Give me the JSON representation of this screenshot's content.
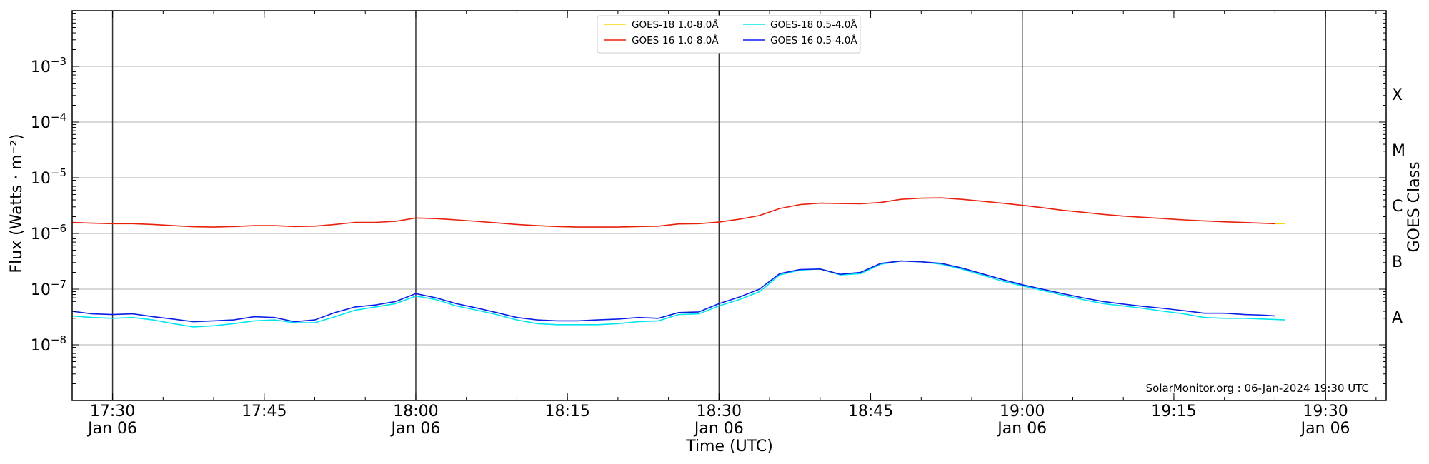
{
  "chart_data": {
    "type": "line",
    "xlabel": "Time (UTC)",
    "ylabel": "Flux (Watts · m⁻²)",
    "y2label": "GOES Class",
    "yscale": "log",
    "ylim": [
      1e-09,
      0.01
    ],
    "xlim": [
      "17:26:00",
      "19:36:00"
    ],
    "y_ticks": [
      {
        "value": 1e-08,
        "base": "10",
        "exp": "−8"
      },
      {
        "value": 1e-07,
        "base": "10",
        "exp": "−7"
      },
      {
        "value": 1e-06,
        "base": "10",
        "exp": "−6"
      },
      {
        "value": 1e-05,
        "base": "10",
        "exp": "−5"
      },
      {
        "value": 0.0001,
        "base": "10",
        "exp": "−4"
      },
      {
        "value": 0.001,
        "base": "10",
        "exp": "−3"
      }
    ],
    "x_ticks": [
      {
        "time": "17:30",
        "label": "17:30",
        "date": "Jan 06"
      },
      {
        "time": "17:45",
        "label": "17:45",
        "date": ""
      },
      {
        "time": "18:00",
        "label": "18:00",
        "date": "Jan 06"
      },
      {
        "time": "18:15",
        "label": "18:15",
        "date": ""
      },
      {
        "time": "18:30",
        "label": "18:30",
        "date": "Jan 06"
      },
      {
        "time": "18:45",
        "label": "18:45",
        "date": ""
      },
      {
        "time": "19:00",
        "label": "19:00",
        "date": "Jan 06"
      },
      {
        "time": "19:15",
        "label": "19:15",
        "date": ""
      },
      {
        "time": "19:30",
        "label": "19:30",
        "date": "Jan 06"
      }
    ],
    "vertical_lines": [
      "17:30",
      "18:00",
      "18:30",
      "19:00",
      "19:30"
    ],
    "goes_classes": [
      {
        "label": "A",
        "value": 3.16e-08
      },
      {
        "label": "B",
        "value": 3.16e-07
      },
      {
        "label": "C",
        "value": 3.16e-06
      },
      {
        "label": "M",
        "value": 3.16e-05
      },
      {
        "label": "X",
        "value": 0.000316
      }
    ],
    "grid": true,
    "legend_position": "top-center",
    "credit": "SolarMonitor.org : 06-Jan-2024 19:30 UTC",
    "series": [
      {
        "name": "GOES-18 1.0-8.0Å",
        "color": "#ffd700",
        "points": [
          [
            "19:25",
            1.5e-06
          ],
          [
            "19:26",
            1.5e-06
          ]
        ]
      },
      {
        "name": "GOES-16 1.0-8.0Å",
        "color": "#e8200c",
        "points": [
          [
            "17:26",
            1.58e-06
          ],
          [
            "17:28",
            1.53e-06
          ],
          [
            "17:30",
            1.5e-06
          ],
          [
            "17:32",
            1.5e-06
          ],
          [
            "17:34",
            1.45e-06
          ],
          [
            "17:36",
            1.38e-06
          ],
          [
            "17:38",
            1.32e-06
          ],
          [
            "17:40",
            1.3e-06
          ],
          [
            "17:42",
            1.33e-06
          ],
          [
            "17:44",
            1.38e-06
          ],
          [
            "17:46",
            1.38e-06
          ],
          [
            "17:48",
            1.33e-06
          ],
          [
            "17:50",
            1.35e-06
          ],
          [
            "17:52",
            1.45e-06
          ],
          [
            "17:54",
            1.58e-06
          ],
          [
            "17:56",
            1.58e-06
          ],
          [
            "17:58",
            1.65e-06
          ],
          [
            "18:00",
            1.9e-06
          ],
          [
            "18:02",
            1.85e-06
          ],
          [
            "18:04",
            1.75e-06
          ],
          [
            "18:06",
            1.65e-06
          ],
          [
            "18:08",
            1.55e-06
          ],
          [
            "18:10",
            1.45e-06
          ],
          [
            "18:12",
            1.38e-06
          ],
          [
            "18:14",
            1.33e-06
          ],
          [
            "18:16",
            1.3e-06
          ],
          [
            "18:18",
            1.3e-06
          ],
          [
            "18:20",
            1.3e-06
          ],
          [
            "18:22",
            1.33e-06
          ],
          [
            "18:24",
            1.35e-06
          ],
          [
            "18:26",
            1.48e-06
          ],
          [
            "18:28",
            1.5e-06
          ],
          [
            "18:30",
            1.6e-06
          ],
          [
            "18:32",
            1.8e-06
          ],
          [
            "18:34",
            2.1e-06
          ],
          [
            "18:36",
            2.8e-06
          ],
          [
            "18:38",
            3.3e-06
          ],
          [
            "18:40",
            3.5e-06
          ],
          [
            "18:42",
            3.45e-06
          ],
          [
            "18:44",
            3.4e-06
          ],
          [
            "18:46",
            3.6e-06
          ],
          [
            "18:48",
            4.1e-06
          ],
          [
            "18:50",
            4.3e-06
          ],
          [
            "18:52",
            4.35e-06
          ],
          [
            "18:54",
            4.1e-06
          ],
          [
            "18:56",
            3.8e-06
          ],
          [
            "18:58",
            3.5e-06
          ],
          [
            "19:00",
            3.2e-06
          ],
          [
            "19:02",
            2.9e-06
          ],
          [
            "19:04",
            2.6e-06
          ],
          [
            "19:06",
            2.4e-06
          ],
          [
            "19:08",
            2.2e-06
          ],
          [
            "19:10",
            2.05e-06
          ],
          [
            "19:12",
            1.95e-06
          ],
          [
            "19:14",
            1.85e-06
          ],
          [
            "19:16",
            1.75e-06
          ],
          [
            "19:18",
            1.68e-06
          ],
          [
            "19:20",
            1.62e-06
          ],
          [
            "19:22",
            1.57e-06
          ],
          [
            "19:24",
            1.52e-06
          ],
          [
            "19:25",
            1.5e-06
          ]
        ]
      },
      {
        "name": "GOES-18 0.5-4.0Å",
        "color": "#00e5ee",
        "points": [
          [
            "17:26",
            3.3e-08
          ],
          [
            "17:28",
            3.1e-08
          ],
          [
            "17:30",
            3e-08
          ],
          [
            "17:32",
            3.1e-08
          ],
          [
            "17:34",
            2.8e-08
          ],
          [
            "17:36",
            2.4e-08
          ],
          [
            "17:38",
            2.1e-08
          ],
          [
            "17:40",
            2.2e-08
          ],
          [
            "17:42",
            2.4e-08
          ],
          [
            "17:44",
            2.7e-08
          ],
          [
            "17:46",
            2.8e-08
          ],
          [
            "17:48",
            2.5e-08
          ],
          [
            "17:50",
            2.5e-08
          ],
          [
            "17:52",
            3.2e-08
          ],
          [
            "17:54",
            4.2e-08
          ],
          [
            "17:56",
            4.8e-08
          ],
          [
            "17:58",
            5.5e-08
          ],
          [
            "18:00",
            7.5e-08
          ],
          [
            "18:02",
            6.5e-08
          ],
          [
            "18:04",
            5e-08
          ],
          [
            "18:06",
            4.2e-08
          ],
          [
            "18:08",
            3.5e-08
          ],
          [
            "18:10",
            2.8e-08
          ],
          [
            "18:12",
            2.4e-08
          ],
          [
            "18:14",
            2.3e-08
          ],
          [
            "18:16",
            2.3e-08
          ],
          [
            "18:18",
            2.3e-08
          ],
          [
            "18:20",
            2.4e-08
          ],
          [
            "18:22",
            2.6e-08
          ],
          [
            "18:24",
            2.7e-08
          ],
          [
            "18:26",
            3.5e-08
          ],
          [
            "18:28",
            3.6e-08
          ],
          [
            "18:30",
            5e-08
          ],
          [
            "18:32",
            6.5e-08
          ],
          [
            "18:34",
            9e-08
          ],
          [
            "18:36",
            1.8e-07
          ],
          [
            "18:38",
            2.2e-07
          ],
          [
            "18:40",
            2.3e-07
          ],
          [
            "18:42",
            1.8e-07
          ],
          [
            "18:44",
            1.9e-07
          ],
          [
            "18:46",
            2.8e-07
          ],
          [
            "18:48",
            3.2e-07
          ],
          [
            "18:50",
            3.1e-07
          ],
          [
            "18:52",
            2.8e-07
          ],
          [
            "18:54",
            2.3e-07
          ],
          [
            "18:56",
            1.8e-07
          ],
          [
            "18:58",
            1.4e-07
          ],
          [
            "19:00",
            1.15e-07
          ],
          [
            "19:02",
            9.5e-08
          ],
          [
            "19:04",
            7.8e-08
          ],
          [
            "19:06",
            6.5e-08
          ],
          [
            "19:08",
            5.5e-08
          ],
          [
            "19:10",
            5e-08
          ],
          [
            "19:12",
            4.5e-08
          ],
          [
            "19:14",
            4e-08
          ],
          [
            "19:16",
            3.6e-08
          ],
          [
            "19:18",
            3.1e-08
          ],
          [
            "19:20",
            3e-08
          ],
          [
            "19:22",
            3e-08
          ],
          [
            "19:24",
            2.9e-08
          ],
          [
            "19:26",
            2.8e-08
          ]
        ]
      },
      {
        "name": "GOES-16 0.5-4.0Å",
        "color": "#0a1ee6",
        "points": [
          [
            "17:26",
            4e-08
          ],
          [
            "17:28",
            3.6e-08
          ],
          [
            "17:30",
            3.5e-08
          ],
          [
            "17:32",
            3.6e-08
          ],
          [
            "17:34",
            3.2e-08
          ],
          [
            "17:36",
            2.9e-08
          ],
          [
            "17:38",
            2.6e-08
          ],
          [
            "17:40",
            2.7e-08
          ],
          [
            "17:42",
            2.8e-08
          ],
          [
            "17:44",
            3.2e-08
          ],
          [
            "17:46",
            3.1e-08
          ],
          [
            "17:48",
            2.6e-08
          ],
          [
            "17:50",
            2.8e-08
          ],
          [
            "17:52",
            3.8e-08
          ],
          [
            "17:54",
            4.8e-08
          ],
          [
            "17:56",
            5.2e-08
          ],
          [
            "17:58",
            6e-08
          ],
          [
            "18:00",
            8.3e-08
          ],
          [
            "18:02",
            7e-08
          ],
          [
            "18:04",
            5.5e-08
          ],
          [
            "18:06",
            4.6e-08
          ],
          [
            "18:08",
            3.8e-08
          ],
          [
            "18:10",
            3.1e-08
          ],
          [
            "18:12",
            2.8e-08
          ],
          [
            "18:14",
            2.7e-08
          ],
          [
            "18:16",
            2.7e-08
          ],
          [
            "18:18",
            2.8e-08
          ],
          [
            "18:20",
            2.9e-08
          ],
          [
            "18:22",
            3.1e-08
          ],
          [
            "18:24",
            3e-08
          ],
          [
            "18:26",
            3.8e-08
          ],
          [
            "18:28",
            3.9e-08
          ],
          [
            "18:30",
            5.5e-08
          ],
          [
            "18:32",
            7.2e-08
          ],
          [
            "18:34",
            1e-07
          ],
          [
            "18:36",
            1.9e-07
          ],
          [
            "18:38",
            2.25e-07
          ],
          [
            "18:40",
            2.3e-07
          ],
          [
            "18:42",
            1.85e-07
          ],
          [
            "18:44",
            2e-07
          ],
          [
            "18:46",
            2.9e-07
          ],
          [
            "18:48",
            3.2e-07
          ],
          [
            "18:50",
            3.1e-07
          ],
          [
            "18:52",
            2.9e-07
          ],
          [
            "18:54",
            2.4e-07
          ],
          [
            "18:56",
            1.9e-07
          ],
          [
            "18:58",
            1.5e-07
          ],
          [
            "19:00",
            1.2e-07
          ],
          [
            "19:02",
            1e-07
          ],
          [
            "19:04",
            8.3e-08
          ],
          [
            "19:06",
            7e-08
          ],
          [
            "19:08",
            6e-08
          ],
          [
            "19:10",
            5.4e-08
          ],
          [
            "19:12",
            4.9e-08
          ],
          [
            "19:14",
            4.5e-08
          ],
          [
            "19:16",
            4.1e-08
          ],
          [
            "19:18",
            3.7e-08
          ],
          [
            "19:20",
            3.7e-08
          ],
          [
            "19:22",
            3.5e-08
          ],
          [
            "19:24",
            3.4e-08
          ],
          [
            "19:25",
            3.3e-08
          ]
        ]
      }
    ]
  }
}
